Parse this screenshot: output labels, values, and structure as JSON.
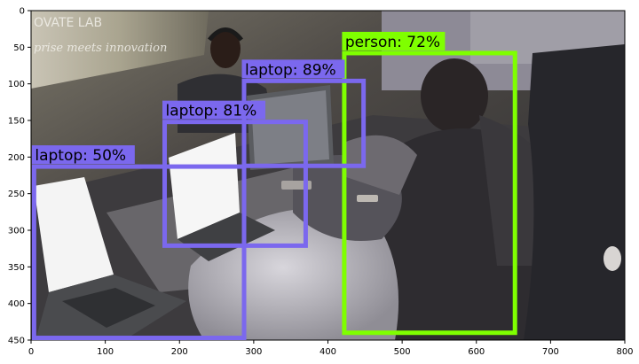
{
  "image": {
    "description_scene": "photo",
    "background_text_lines": [
      "OVATE LAB",
      "prise meets innovation"
    ]
  },
  "axes": {
    "x_ticks": [
      "0",
      "100",
      "200",
      "300",
      "400",
      "500",
      "600",
      "700",
      "800"
    ],
    "y_ticks": [
      "0",
      "50",
      "100",
      "150",
      "200",
      "250",
      "300",
      "350",
      "400",
      "450"
    ],
    "xlim": [
      0,
      800
    ],
    "ylim": [
      450,
      0
    ]
  },
  "detections": [
    {
      "label": "person: 72%",
      "class": "person",
      "score": 72,
      "x1": 422,
      "y1": 58,
      "x2": 652,
      "y2": 440,
      "color": "#7fff00"
    },
    {
      "label": "laptop: 89%",
      "class": "laptop",
      "score": 89,
      "x1": 287,
      "y1": 96,
      "x2": 448,
      "y2": 212,
      "color": "#7b68ee"
    },
    {
      "label": "laptop: 81%",
      "class": "laptop",
      "score": 81,
      "x1": 180,
      "y1": 152,
      "x2": 370,
      "y2": 321,
      "color": "#7b68ee"
    },
    {
      "label": "laptop: 50%",
      "class": "laptop",
      "score": 50,
      "x1": 4,
      "y1": 213,
      "x2": 287,
      "y2": 447,
      "color": "#7b68ee"
    }
  ]
}
